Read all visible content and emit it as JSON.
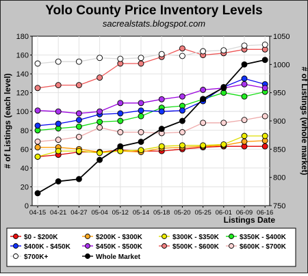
{
  "chart_data": {
    "type": "line",
    "title": "Yolo County Price Inventory Levels",
    "subtitle": "sacrealstats.blogspot.com",
    "xlabel": "Listings Date",
    "ylabel": "# of Listings (each level)",
    "ylabel_right": "# of Listings (whole market)",
    "ylim": [
      0,
      180
    ],
    "yticks": [
      0,
      20,
      40,
      60,
      80,
      100,
      120,
      140,
      160,
      180
    ],
    "ylim_right": [
      750,
      1050
    ],
    "yticks_right": [
      750,
      800,
      850,
      900,
      950,
      1000,
      1050
    ],
    "grid": true,
    "legend_position": "bottom",
    "categories": [
      "04-15",
      "04-21",
      "04-27",
      "05-04",
      "05-12",
      "05-14",
      "05-18",
      "05-20",
      "05-25",
      "06-01",
      "06-09",
      "06-16"
    ],
    "series": [
      {
        "name": "$0 - $200K",
        "axis": "left",
        "color": "#dd0000",
        "marker": "#ee1111",
        "values": [
          52,
          54,
          57,
          57,
          59,
          58,
          58,
          60,
          62,
          63,
          63,
          63
        ]
      },
      {
        "name": "$200K - $300K",
        "axis": "left",
        "color": "#ff9900",
        "marker": "#ffaa22",
        "values": [
          62,
          62,
          60,
          57,
          58,
          57,
          61,
          62,
          63,
          64,
          68,
          69
        ]
      },
      {
        "name": "$300K - $350K",
        "axis": "left",
        "color": "#dddd00",
        "marker": "#eeee00",
        "values": [
          52,
          58,
          58,
          56,
          58,
          59,
          63,
          64,
          64,
          65,
          74,
          74
        ]
      },
      {
        "name": "$350K - $400K",
        "axis": "left",
        "color": "#11dd11",
        "marker": "#22ee22",
        "values": [
          80,
          82,
          84,
          89,
          90,
          95,
          104,
          106,
          113,
          120,
          116,
          121
        ]
      },
      {
        "name": "$400K - $450K",
        "axis": "left",
        "color": "#0000ee",
        "marker": "#1133ff",
        "values": [
          85,
          87,
          91,
          97,
          98,
          101,
          100,
          101,
          111,
          126,
          135,
          129
        ]
      },
      {
        "name": "$450K - $500K",
        "axis": "left",
        "color": "#9900dd",
        "marker": "#aa33ee",
        "values": [
          101,
          100,
          98,
          100,
          109,
          109,
          113,
          116,
          123,
          125,
          129,
          125
        ]
      },
      {
        "name": "$500K - $600K",
        "axis": "left",
        "color": "#ee5555",
        "marker": "#f08080",
        "values": [
          125,
          128,
          128,
          136,
          151,
          151,
          158,
          167,
          160,
          162,
          166,
          166
        ]
      },
      {
        "name": "$600K - $700K",
        "axis": "left",
        "color": "#eeaaaa",
        "marker": "#ffd5d5",
        "values": [
          68,
          70,
          73,
          83,
          78,
          78,
          77,
          78,
          88,
          88,
          91,
          95
        ]
      },
      {
        "name": "$700K+",
        "axis": "left",
        "color": "#d8d8d8",
        "marker": "#ffffff",
        "values": [
          151,
          153,
          153,
          157,
          156,
          157,
          161,
          159,
          164,
          165,
          170,
          171
        ]
      },
      {
        "name": "Whole Market",
        "axis": "right",
        "color": "#000000",
        "marker": "#000000",
        "values": [
          772,
          793,
          797,
          831,
          855,
          863,
          886,
          900,
          939,
          959,
          1000,
          1008
        ]
      }
    ]
  }
}
